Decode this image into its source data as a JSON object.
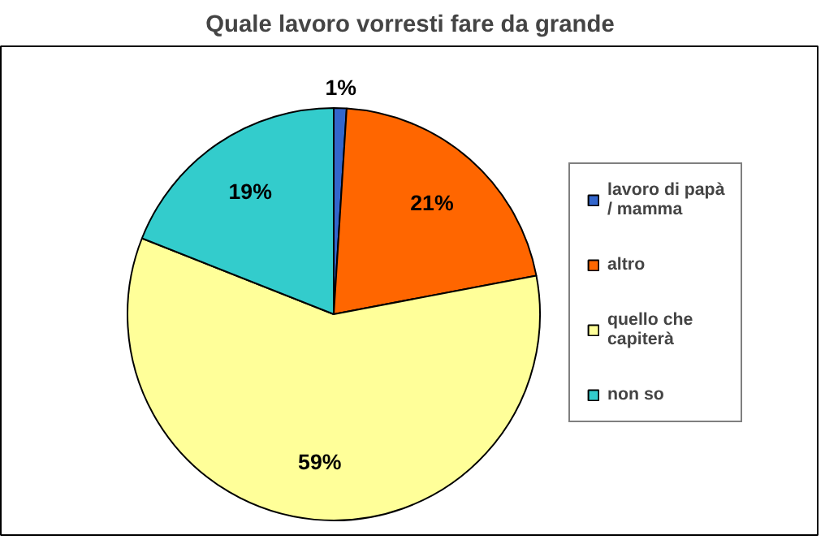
{
  "chart_data": {
    "type": "pie",
    "title": "Quale lavoro vorresti fare da grande",
    "categories": [
      "lavoro di papà / mamma",
      "altro",
      "quello che capiterà",
      "non so"
    ],
    "values": [
      1,
      21,
      59,
      19
    ],
    "colors": [
      "#3366cc",
      "#ff6600",
      "#ffff99",
      "#33cccc"
    ],
    "value_labels": [
      "1%",
      "21%",
      "59%",
      "19%"
    ],
    "legend": "right"
  }
}
